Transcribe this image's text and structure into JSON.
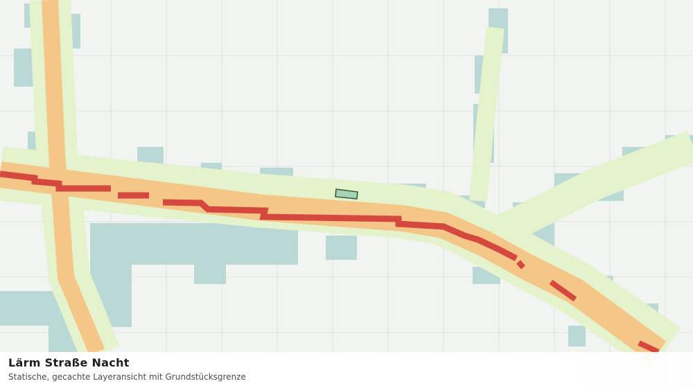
{
  "legend": {
    "title": "Lärm Straße Nacht",
    "subtitle": "Statische, gecachte Layeransicht mit Grundstücksgrenze"
  }
}
